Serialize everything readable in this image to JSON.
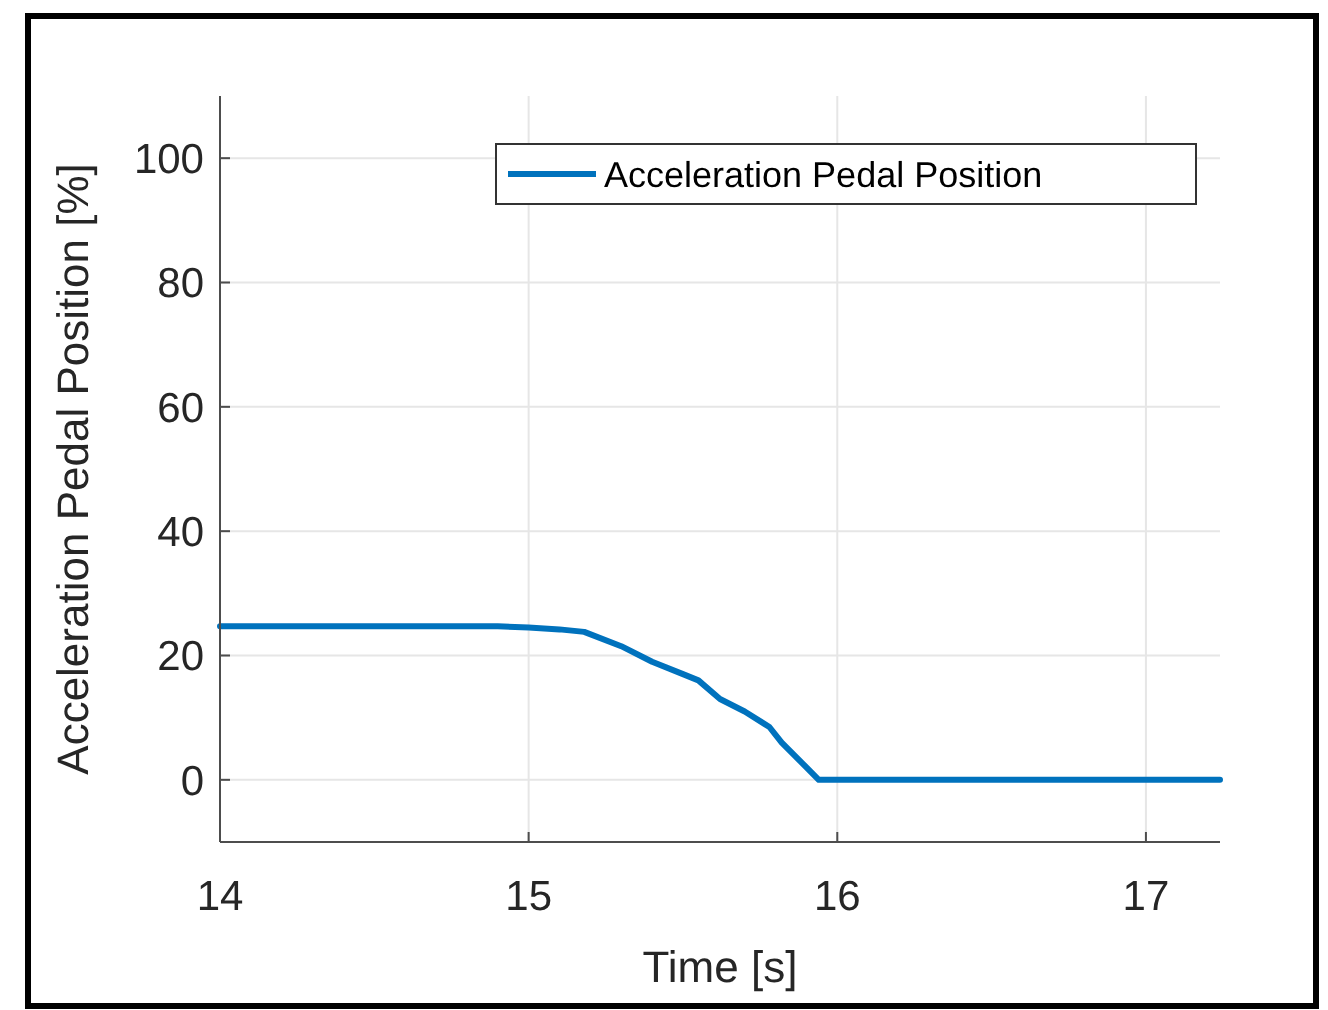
{
  "chart_data": {
    "type": "line",
    "xlabel": "Time [s]",
    "ylabel": "Acceleration Pedal Position [%]",
    "x": [
      14,
      14.5,
      14.9,
      15.0,
      15.1,
      15.18,
      15.3,
      15.4,
      15.5,
      15.55,
      15.62,
      15.7,
      15.78,
      15.82,
      15.9,
      15.94,
      16.5,
      17.24
    ],
    "series": [
      {
        "name": "Acceleration Pedal Position",
        "color": "#0072bd",
        "values": [
          24.7,
          24.7,
          24.7,
          24.5,
          24.2,
          23.8,
          21.5,
          19,
          17,
          16,
          13,
          11,
          8.5,
          6,
          2,
          0,
          0,
          0
        ]
      }
    ],
    "xlim": [
      14,
      17.24
    ],
    "xticks": [
      14,
      15,
      16,
      17
    ],
    "ylim": [
      -10,
      110
    ],
    "yticks": [
      0,
      20,
      40,
      60,
      80,
      100
    ],
    "grid": true,
    "legend": "top right",
    "marker": "none",
    "line_style": "solid"
  }
}
